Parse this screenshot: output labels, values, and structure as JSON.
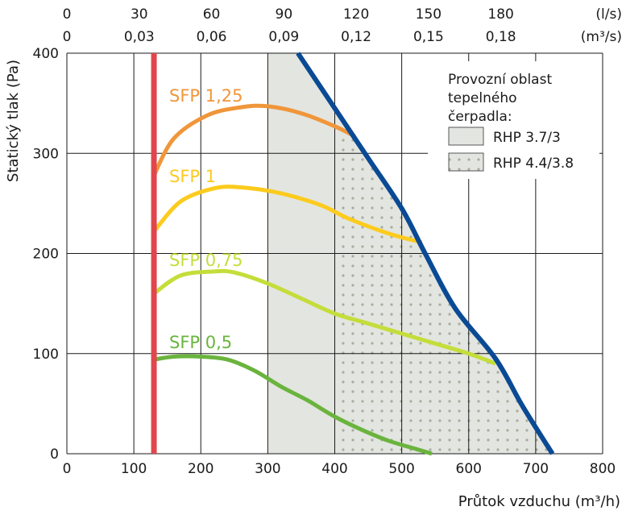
{
  "chart_data": {
    "type": "line",
    "xlabel": "Průtok vzduchu (m³/h)",
    "ylabel": "Statický tlak (Pa)",
    "xlim": [
      0,
      800
    ],
    "ylim": [
      0,
      400
    ],
    "x_ticks": [
      0,
      100,
      200,
      300,
      400,
      500,
      600,
      700,
      800
    ],
    "y_ticks": [
      0,
      100,
      200,
      300,
      400
    ],
    "grid": true,
    "top_axis_ls": {
      "unit": "(l/s)",
      "ticks": [
        {
          "value": 0,
          "label": "0"
        },
        {
          "value": 30,
          "label": "30"
        },
        {
          "value": 60,
          "label": "60"
        },
        {
          "value": 90,
          "label": "90"
        },
        {
          "value": 120,
          "label": "120"
        },
        {
          "value": 150,
          "label": "150"
        },
        {
          "value": 180,
          "label": "180"
        }
      ]
    },
    "top_axis_m3s": {
      "unit": "(m³/s)",
      "ticks": [
        "0",
        "0,03",
        "0,06",
        "0,09",
        "0,12",
        "0,15",
        "0,18"
      ]
    },
    "min_flow_line": {
      "x": 130,
      "color": "#e0474c"
    },
    "max_curve": {
      "color": "#0a4a94",
      "points": [
        [
          345,
          400
        ],
        [
          400,
          345
        ],
        [
          450,
          295
        ],
        [
          500,
          245
        ],
        [
          535,
          200
        ],
        [
          580,
          145
        ],
        [
          640,
          95
        ],
        [
          680,
          48
        ],
        [
          725,
          0
        ]
      ]
    },
    "series": [
      {
        "name": "SFP 1,25",
        "color": "#f0963a",
        "points": [
          [
            130,
            278
          ],
          [
            160,
            315
          ],
          [
            210,
            338
          ],
          [
            260,
            346
          ],
          [
            300,
            347
          ],
          [
            350,
            340
          ],
          [
            400,
            327
          ],
          [
            430,
            317
          ]
        ]
      },
      {
        "name": "SFP 1",
        "color": "#fccb1e",
        "points": [
          [
            130,
            222
          ],
          [
            170,
            252
          ],
          [
            220,
            265
          ],
          [
            260,
            266
          ],
          [
            320,
            260
          ],
          [
            380,
            248
          ],
          [
            420,
            235
          ],
          [
            480,
            220
          ],
          [
            530,
            211
          ]
        ]
      },
      {
        "name": "SFP 0,75",
        "color": "#c5dd3a",
        "points": [
          [
            130,
            160
          ],
          [
            170,
            178
          ],
          [
            220,
            182
          ],
          [
            250,
            181
          ],
          [
            300,
            170
          ],
          [
            350,
            155
          ],
          [
            400,
            140
          ],
          [
            450,
            130
          ],
          [
            500,
            120
          ],
          [
            550,
            110
          ],
          [
            600,
            100
          ],
          [
            640,
            90
          ]
        ]
      },
      {
        "name": "SFP 0,5",
        "color": "#6ab43e",
        "points": [
          [
            130,
            94
          ],
          [
            160,
            97
          ],
          [
            200,
            97
          ],
          [
            240,
            94
          ],
          [
            280,
            83
          ],
          [
            320,
            67
          ],
          [
            360,
            53
          ],
          [
            400,
            37
          ],
          [
            440,
            24
          ],
          [
            480,
            13
          ],
          [
            520,
            5
          ],
          [
            545,
            0
          ]
        ]
      }
    ],
    "regions": [
      {
        "name": "RHP 3.7/3",
        "fill": "#e3e5e0",
        "polygon": [
          [
            300,
            400
          ],
          [
            345,
            400
          ],
          [
            400,
            345
          ],
          [
            400,
            0
          ],
          [
            300,
            0
          ]
        ]
      },
      {
        "name": "RHP 4.4/3.8",
        "fill": "#e3e5e0",
        "dotted": true,
        "polygon": [
          [
            400,
            0
          ],
          [
            400,
            345
          ],
          [
            450,
            295
          ],
          [
            500,
            245
          ],
          [
            535,
            200
          ],
          [
            580,
            145
          ],
          [
            640,
            95
          ],
          [
            680,
            48
          ],
          [
            725,
            0
          ]
        ]
      }
    ],
    "legend": {
      "title": "Provozní oblast tepelného čerpadla:",
      "title_lines": [
        "Provozní oblast",
        "tepelného",
        "čerpadla:"
      ],
      "items": [
        "RHP 3.7/3",
        "RHP 4.4/3.8"
      ],
      "placement": "top-right"
    }
  }
}
